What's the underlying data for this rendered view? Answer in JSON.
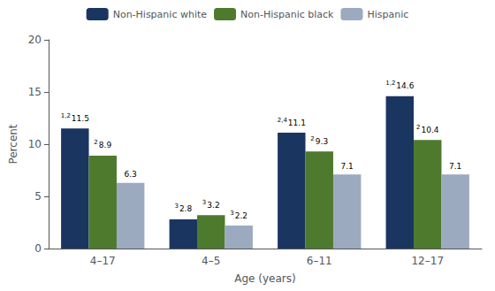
{
  "chart_data": {
    "type": "bar",
    "categories": [
      "4–17",
      "4–5",
      "6–11",
      "12–17"
    ],
    "series": [
      {
        "name": "Non-Hispanic white",
        "color": "#1a3560",
        "values": [
          11.5,
          2.8,
          11.1,
          14.6
        ],
        "annotations": [
          "1,2",
          "3",
          "2,4",
          "1,2"
        ]
      },
      {
        "name": "Non-Hispanic black",
        "color": "#4e7a2e",
        "values": [
          8.9,
          3.2,
          9.3,
          10.4
        ],
        "annotations": [
          "2",
          "3",
          "2",
          "2"
        ]
      },
      {
        "name": "Hispanic",
        "color": "#9baabf",
        "values": [
          6.3,
          2.2,
          7.1,
          7.1
        ],
        "annotations": [
          null,
          "3",
          null,
          null
        ]
      }
    ],
    "xlabel": "Age (years)",
    "ylabel": "Percent",
    "ylim": [
      0,
      20
    ],
    "yticks": [
      0,
      5,
      10,
      15,
      20
    ],
    "grid": false,
    "legend": "top",
    "data_labels": true
  }
}
